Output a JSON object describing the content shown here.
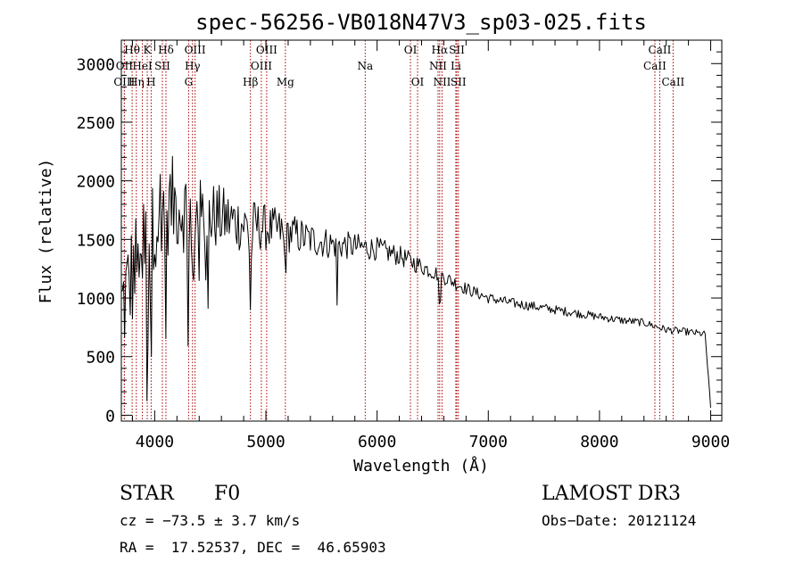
{
  "chart_data": {
    "type": "line",
    "title": "spec-56256-VB018N47V3_sp03-025.fits",
    "xlabel": "Wavelength (Å)",
    "ylabel": "Flux (relative)",
    "xlim": [
      3700,
      9100
    ],
    "ylim": [
      -50,
      3200
    ],
    "xticks": [
      4000,
      5000,
      6000,
      7000,
      8000,
      9000
    ],
    "yticks": [
      0,
      500,
      1000,
      1500,
      2000,
      2500,
      3000
    ],
    "x_minor_step": 200,
    "y_minor_step": 100,
    "series": [
      {
        "name": "spectrum",
        "color": "#000000",
        "x_range": [
          3700,
          9000
        ],
        "x_step": 10,
        "envelope": [
          [
            3700,
            900
          ],
          [
            3800,
            1200
          ],
          [
            3900,
            1450
          ],
          [
            4000,
            1700
          ],
          [
            4100,
            1800
          ],
          [
            4200,
            1800
          ],
          [
            4300,
            1750
          ],
          [
            4400,
            1680
          ],
          [
            4500,
            1700
          ],
          [
            4600,
            1680
          ],
          [
            4700,
            1660
          ],
          [
            4800,
            1630
          ],
          [
            4900,
            1620
          ],
          [
            5000,
            1600
          ],
          [
            5100,
            1580
          ],
          [
            5200,
            1560
          ],
          [
            5400,
            1500
          ],
          [
            5600,
            1460
          ],
          [
            5800,
            1440
          ],
          [
            6000,
            1420
          ],
          [
            6200,
            1360
          ],
          [
            6400,
            1270
          ],
          [
            6600,
            1180
          ],
          [
            6800,
            1080
          ],
          [
            7000,
            1000
          ],
          [
            7200,
            960
          ],
          [
            7400,
            930
          ],
          [
            7600,
            900
          ],
          [
            7800,
            870
          ],
          [
            8000,
            840
          ],
          [
            8200,
            810
          ],
          [
            8400,
            790
          ],
          [
            8600,
            730
          ],
          [
            8800,
            710
          ],
          [
            8950,
            690
          ],
          [
            9000,
            50
          ]
        ],
        "noise": [
          [
            3700,
            500
          ],
          [
            4000,
            450
          ],
          [
            4300,
            380
          ],
          [
            4600,
            280
          ],
          [
            5000,
            200
          ],
          [
            5500,
            140
          ],
          [
            6000,
            100
          ],
          [
            6500,
            70
          ],
          [
            7000,
            45
          ],
          [
            8000,
            35
          ],
          [
            9000,
            30
          ]
        ],
        "features": [
          {
            "x": 3933,
            "depth": 1200,
            "width": 8
          },
          {
            "x": 3968,
            "depth": 1100,
            "width": 8
          },
          {
            "x": 4101,
            "depth": 900,
            "width": 10
          },
          {
            "x": 4300,
            "depth": 800,
            "width": 10
          },
          {
            "x": 4340,
            "depth": 800,
            "width": 10
          },
          {
            "x": 4861,
            "depth": 700,
            "width": 10
          },
          {
            "x": 5173,
            "depth": 250,
            "width": 15
          },
          {
            "x": 5640,
            "depth": 500,
            "width": 6
          },
          {
            "x": 6563,
            "depth": 350,
            "width": 8
          }
        ]
      }
    ],
    "lines": [
      {
        "label": "Hθ",
        "x": 3797,
        "row": 0
      },
      {
        "label": "OII",
        "x": 3727,
        "row": 1
      },
      {
        "label": "OIII",
        "x": 3727,
        "row": 2
      },
      {
        "label": "K",
        "x": 3933,
        "row": 0
      },
      {
        "label": "HeI",
        "x": 3889,
        "row": 1
      },
      {
        "label": "Hη",
        "x": 3835,
        "row": 2
      },
      {
        "label": "SII",
        "x": 4069,
        "row": 1
      },
      {
        "label": "H",
        "x": 3968,
        "row": 2
      },
      {
        "label": "Hδ",
        "x": 4101,
        "row": 0
      },
      {
        "label": "OIII",
        "x": 4363,
        "row": 0
      },
      {
        "label": "Hγ",
        "x": 4340,
        "row": 1
      },
      {
        "label": "G",
        "x": 4305,
        "row": 2
      },
      {
        "label": "Hβ",
        "x": 4861,
        "row": 2
      },
      {
        "label": "OIII",
        "x": 5007,
        "row": 0
      },
      {
        "label": "OIII",
        "x": 4959,
        "row": 1
      },
      {
        "label": "Mg",
        "x": 5175,
        "row": 2
      },
      {
        "label": "Na",
        "x": 5893,
        "row": 1
      },
      {
        "label": "OI",
        "x": 6300,
        "row": 0
      },
      {
        "label": "OI",
        "x": 6364,
        "row": 2
      },
      {
        "label": "Hα",
        "x": 6563,
        "row": 0
      },
      {
        "label": "NII",
        "x": 6548,
        "row": 1
      },
      {
        "label": "NII",
        "x": 6584,
        "row": 2
      },
      {
        "label": "SII",
        "x": 6717,
        "row": 0
      },
      {
        "label": "Li",
        "x": 6708,
        "row": 1
      },
      {
        "label": "SII",
        "x": 6731,
        "row": 2
      },
      {
        "label": "CaII",
        "x": 8542,
        "row": 0
      },
      {
        "label": "CaII",
        "x": 8498,
        "row": 1
      },
      {
        "label": "CaII",
        "x": 8662,
        "row": 2
      }
    ],
    "line_color": "#aa0000"
  },
  "info": {
    "object_class": "STAR",
    "subclass": "F0",
    "survey": "LAMOST DR3",
    "cz": "cz = −73.5 ± 3.7 km/s",
    "obs_date": "Obs−Date: 20121124",
    "coords": "RA =  17.52537, DEC =  46.65903"
  }
}
